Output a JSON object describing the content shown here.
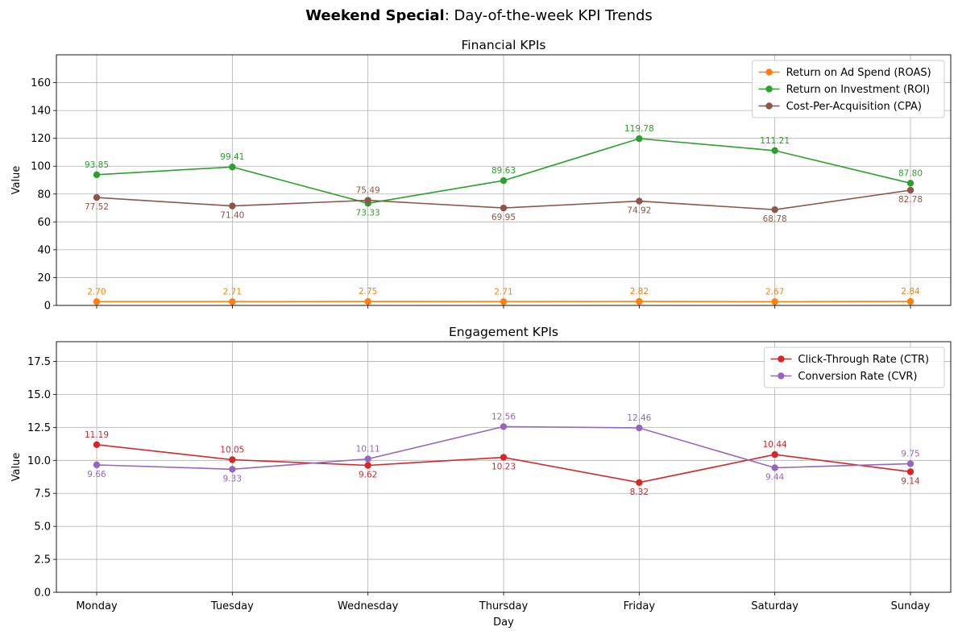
{
  "figure": {
    "title_bold": "Weekend Special",
    "title_rest": ": Day-of-the-week KPI Trends"
  },
  "chart_data": [
    {
      "type": "line",
      "title": "Financial KPIs",
      "xlabel": "",
      "ylabel": "Value",
      "categories": [
        "Monday",
        "Tuesday",
        "Wednesday",
        "Thursday",
        "Friday",
        "Saturday",
        "Sunday"
      ],
      "ylim": [
        0,
        180
      ],
      "yticks": [
        "0",
        "20",
        "40",
        "60",
        "80",
        "100",
        "120",
        "140",
        "160"
      ],
      "grid": true,
      "legend": "top-right",
      "series": [
        {
          "name": "Return on Ad Spend (ROAS)",
          "color": "#ff7f0e",
          "values": [
            2.7,
            2.71,
            2.75,
            2.71,
            2.82,
            2.67,
            2.84
          ],
          "labels": [
            "2.70",
            "2.71",
            "2.75",
            "2.71",
            "2.82",
            "2.67",
            "2.84"
          ],
          "label_pos": [
            "above",
            "above",
            "above",
            "above",
            "above",
            "above",
            "above"
          ]
        },
        {
          "name": "Return on Investment (ROI)",
          "color": "#2ca02c",
          "values": [
            93.85,
            99.41,
            73.33,
            89.63,
            119.78,
            111.21,
            87.8
          ],
          "labels": [
            "93.85",
            "99.41",
            "73.33",
            "89.63",
            "119.78",
            "111.21",
            "87.80"
          ],
          "label_pos": [
            "above",
            "above",
            "below",
            "above",
            "above",
            "above",
            "above"
          ]
        },
        {
          "name": "Cost-Per-Acquisition (CPA)",
          "color": "#8c564b",
          "values": [
            77.52,
            71.4,
            75.49,
            69.95,
            74.92,
            68.78,
            82.78
          ],
          "labels": [
            "77.52",
            "71.40",
            "75.49",
            "69.95",
            "74.92",
            "68.78",
            "82.78"
          ],
          "label_pos": [
            "below",
            "below",
            "above",
            "below",
            "below",
            "below",
            "below"
          ]
        }
      ]
    },
    {
      "type": "line",
      "title": "Engagement KPIs",
      "xlabel": "Day",
      "ylabel": "Value",
      "categories": [
        "Monday",
        "Tuesday",
        "Wednesday",
        "Thursday",
        "Friday",
        "Saturday",
        "Sunday"
      ],
      "ylim": [
        0,
        19
      ],
      "yticks": [
        "0.0",
        "2.5",
        "5.0",
        "7.5",
        "10.0",
        "12.5",
        "15.0",
        "17.5"
      ],
      "grid": true,
      "legend": "top-right",
      "series": [
        {
          "name": "Click-Through Rate (CTR)",
          "color": "#d62728",
          "values": [
            11.19,
            10.05,
            9.62,
            10.23,
            8.32,
            10.44,
            9.14
          ],
          "labels": [
            "11.19",
            "10.05",
            "9.62",
            "10.23",
            "8.32",
            "10.44",
            "9.14"
          ],
          "label_pos": [
            "above",
            "above",
            "below",
            "below",
            "below",
            "above",
            "below"
          ]
        },
        {
          "name": "Conversion Rate (CVR)",
          "color": "#9467bd",
          "values": [
            9.66,
            9.33,
            10.11,
            12.56,
            12.46,
            9.44,
            9.75
          ],
          "labels": [
            "9.66",
            "9.33",
            "10.11",
            "12.56",
            "12.46",
            "9.44",
            "9.75"
          ],
          "label_pos": [
            "below",
            "below",
            "above",
            "above",
            "above",
            "below",
            "above"
          ]
        }
      ]
    }
  ]
}
